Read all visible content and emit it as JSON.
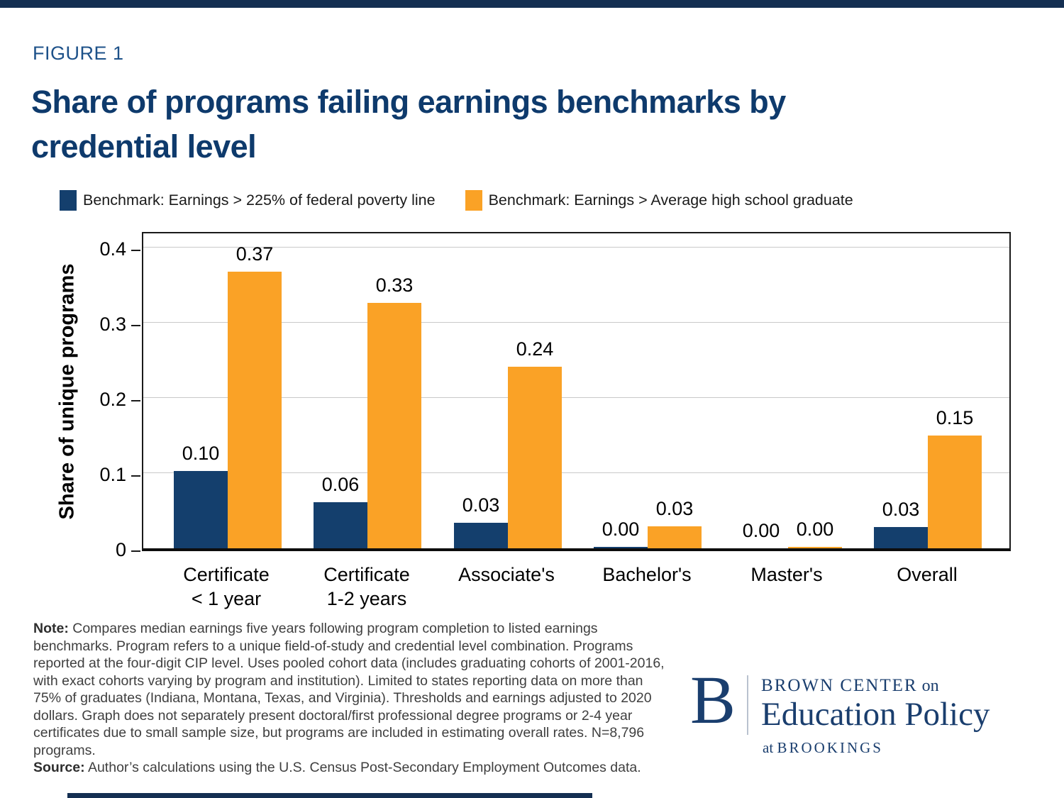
{
  "figure_label": "FIGURE 1",
  "title": "Share of programs failing earnings benchmarks by credential level",
  "title_lines": [
    "Share of programs failing earnings benchmarks by",
    "credential level"
  ],
  "legend": [
    {
      "label": "Benchmark: Earnings > 225% of federal poverty line",
      "color": "#143f6d"
    },
    {
      "label": "Benchmark: Earnings > Average high school graduate",
      "color": "#faa226"
    }
  ],
  "chart_data": {
    "type": "bar",
    "categories": [
      [
        "Certificate",
        "< 1 year"
      ],
      [
        "Certificate",
        "1-2 years"
      ],
      [
        "Associate's"
      ],
      [
        "Bachelor's"
      ],
      [
        "Master's"
      ],
      [
        "Overall"
      ]
    ],
    "series": [
      {
        "name": "Benchmark: Earnings > 225% of federal poverty line",
        "color": "#143f6d",
        "values": [
          0.1,
          0.06,
          0.03,
          0.0,
          0.0,
          0.03
        ],
        "values_exact": [
          0.103,
          0.061,
          0.034,
          0.002,
          0.0,
          0.028
        ],
        "labels": [
          "0.10",
          "0.06",
          "0.03",
          "0.00",
          "0.00",
          "0.03"
        ]
      },
      {
        "name": "Benchmark: Earnings > Average high school graduate",
        "color": "#faa226",
        "values": [
          0.37,
          0.33,
          0.24,
          0.03,
          0.0,
          0.15
        ],
        "values_exact": [
          0.368,
          0.327,
          0.242,
          0.029,
          0.002,
          0.15
        ],
        "labels": [
          "0.37",
          "0.33",
          "0.24",
          "0.03",
          "0.00",
          "0.15"
        ]
      }
    ],
    "xlabel": "",
    "ylabel": "Share of unique programs",
    "yticks": [
      0,
      0.1,
      0.2,
      0.3,
      0.4
    ],
    "ytick_labels": [
      "0",
      "0.1",
      "0.2",
      "0.3",
      "0.4"
    ],
    "ylim": [
      0,
      0.425
    ],
    "grid": true,
    "legend_position": "top"
  },
  "note": {
    "label": "Note:",
    "lines": [
      "Compares median earnings five years following program completion to listed earnings",
      "benchmarks. Program refers to a unique field-of-study and credential level combination. Programs",
      "reported at the four-digit CIP level. Uses pooled cohort data (includes graduating cohorts of 2001-2016,",
      "with exact cohorts varying by program and institution). Limited to states reporting data on more than",
      "75% of graduates (Indiana, Montana, Texas, and Virginia). Thresholds and earnings adjusted to 2020",
      "dollars. Graph does not separately present doctoral/first professional degree programs or 2-4 year",
      "certificates due to small sample size, but programs are included in estimating overall rates. N=8,796",
      "programs."
    ]
  },
  "source": {
    "label": "Source:",
    "text": "Author’s calculations using the U.S. Census Post-Secondary Employment Outcomes data."
  },
  "logo": {
    "monogram": "B",
    "line1_caps": "BROWN CENTER",
    "line1_small": " on",
    "line2": "Education Policy",
    "line3_small": "at ",
    "line3_caps": "BROOKINGS",
    "color": "#1a3e6e"
  },
  "colors": {
    "border_bars": "#142f52",
    "title": "#0e3a6c",
    "figure_label": "#1d5189",
    "gridline": "#c9c9c9"
  }
}
